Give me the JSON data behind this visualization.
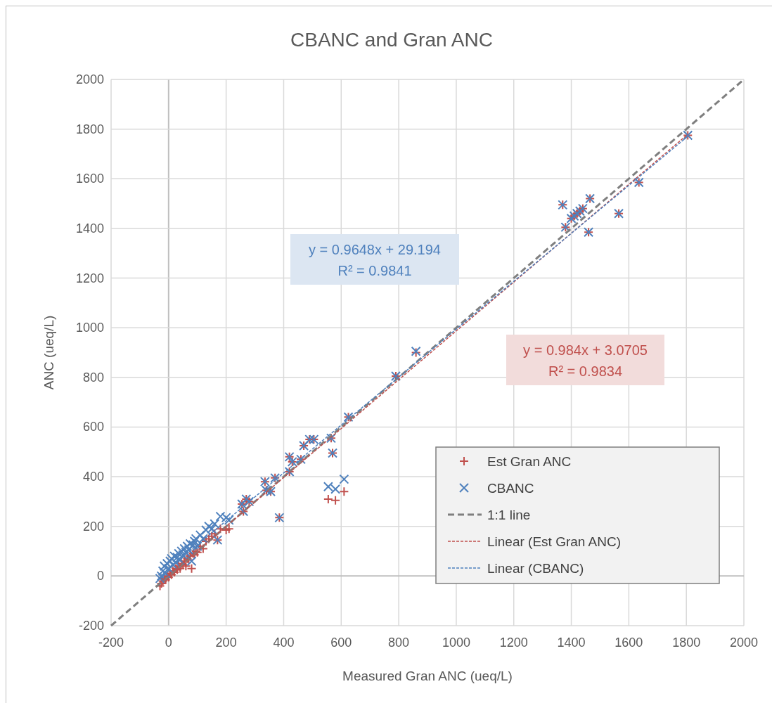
{
  "chart_data": {
    "type": "scatter",
    "title": "CBANC and Gran ANC",
    "xlabel": "Measured Gran ANC (ueq/L)",
    "ylabel": "ANC (ueq/L)",
    "x": [
      -30,
      -25,
      -20,
      -15,
      -10,
      -5,
      0,
      5,
      10,
      15,
      20,
      25,
      30,
      35,
      40,
      45,
      50,
      55,
      60,
      65,
      70,
      75,
      80,
      85,
      90,
      95,
      100,
      110,
      120,
      130,
      140,
      150,
      160,
      170,
      180,
      200,
      210,
      255,
      260,
      270,
      280,
      335,
      340,
      355,
      370,
      385,
      420,
      420,
      430,
      460,
      470,
      490,
      505,
      555,
      565,
      570,
      580,
      610,
      625,
      790,
      860,
      1370,
      1380,
      1400,
      1410,
      1420,
      1430,
      1440,
      1460,
      1465,
      1565,
      1635,
      1805
    ],
    "series": [
      {
        "name": "Est Gran ANC",
        "color": "#c0504d",
        "marker": "cross",
        "values": [
          -40,
          -30,
          -20,
          -10,
          -15,
          0,
          -5,
          10,
          5,
          20,
          15,
          30,
          25,
          40,
          30,
          50,
          45,
          60,
          40,
          70,
          65,
          80,
          30,
          90,
          85,
          100,
          95,
          120,
          110,
          140,
          150,
          160,
          170,
          145,
          190,
          185,
          190,
          290,
          260,
          310,
          300,
          380,
          345,
          340,
          395,
          235,
          420,
          480,
          460,
          470,
          525,
          550,
          550,
          310,
          555,
          495,
          305,
          340,
          640,
          805,
          900,
          1495,
          1405,
          1440,
          1450,
          1460,
          1470,
          1480,
          1385,
          1520,
          1460,
          1585,
          1775
        ]
      },
      {
        "name": "CBANC",
        "color": "#4f81bd",
        "marker": "x",
        "values": [
          -10,
          0,
          20,
          40,
          10,
          50,
          30,
          60,
          70,
          45,
          80,
          55,
          75,
          90,
          65,
          100,
          85,
          110,
          95,
          120,
          105,
          130,
          60,
          125,
          140,
          150,
          120,
          165,
          150,
          185,
          200,
          190,
          210,
          145,
          240,
          235,
          225,
          290,
          260,
          310,
          300,
          380,
          345,
          340,
          395,
          235,
          420,
          480,
          460,
          470,
          525,
          550,
          550,
          360,
          555,
          495,
          350,
          390,
          640,
          805,
          905,
          1495,
          1405,
          1440,
          1450,
          1460,
          1470,
          1480,
          1385,
          1520,
          1460,
          1585,
          1775
        ]
      },
      {
        "name": "1:1 line",
        "type": "line",
        "color": "#7f7f7f",
        "line_style": "dashed",
        "x": [
          -200,
          2000
        ],
        "values": [
          -200,
          2000
        ]
      },
      {
        "name": "Linear (Est Gran ANC)",
        "type": "line",
        "color": "#c0504d",
        "line_style": "dotted",
        "x": [
          -30,
          1805
        ],
        "values": [
          -26,
          1779
        ]
      },
      {
        "name": "Linear (CBANC)",
        "type": "line",
        "color": "#4f81bd",
        "line_style": "dotted",
        "x": [
          -30,
          1805
        ],
        "values": [
          0,
          1771
        ]
      }
    ],
    "annotations": [
      "y = 0.9648x + 29.194\nR² = 0.9841",
      "y = 0.984x + 3.0705\nR² = 0.9834"
    ],
    "xlim": [
      -200,
      2000
    ],
    "ylim": [
      -200,
      2000
    ],
    "xticks": [
      -200,
      0,
      200,
      400,
      600,
      800,
      1000,
      1200,
      1400,
      1600,
      1800,
      2000
    ],
    "yticks": [
      -200,
      0,
      200,
      400,
      600,
      800,
      1000,
      1200,
      1400,
      1600,
      1800,
      2000
    ],
    "grid": true,
    "legend": "bottom right"
  }
}
